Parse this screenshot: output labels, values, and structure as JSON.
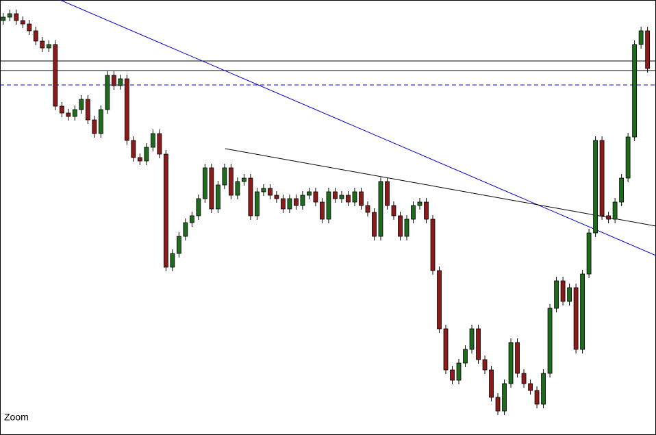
{
  "chart_data": {
    "type": "candlestick",
    "label": "Zoom",
    "up_color": "#1e6b1e",
    "down_color": "#8b1a1a",
    "wick_color": "#000000",
    "xlim": [
      -0.5,
      100.3
    ],
    "ylim": [
      0,
      635
    ],
    "open": [
      605,
      610,
      615,
      605,
      600,
      590,
      575,
      565,
      570,
      480,
      470,
      465,
      475,
      490,
      460,
      440,
      475,
      525,
      510,
      520,
      430,
      405,
      400,
      420,
      440,
      410,
      245,
      265,
      290,
      310,
      320,
      345,
      390,
      330,
      365,
      390,
      350,
      370,
      375,
      320,
      355,
      360,
      350,
      345,
      330,
      345,
      335,
      350,
      355,
      340,
      315,
      355,
      345,
      350,
      340,
      355,
      335,
      325,
      290,
      370,
      335,
      320,
      290,
      315,
      335,
      340,
      315,
      240,
      155,
      95,
      80,
      105,
      125,
      155,
      110,
      95,
      55,
      35,
      75,
      135,
      90,
      75,
      65,
      45,
      90,
      185,
      225,
      195,
      215,
      125,
      235,
      295,
      430,
      320,
      315,
      340,
      375,
      435,
      570,
      590
    ],
    "high": [
      616,
      621,
      621,
      611,
      606,
      596,
      581,
      576,
      576,
      486,
      476,
      481,
      496,
      496,
      466,
      481,
      531,
      531,
      526,
      526,
      436,
      411,
      426,
      446,
      446,
      416,
      271,
      296,
      316,
      326,
      351,
      396,
      396,
      371,
      396,
      396,
      376,
      381,
      381,
      361,
      366,
      366,
      356,
      351,
      351,
      351,
      356,
      361,
      361,
      346,
      361,
      361,
      356,
      356,
      361,
      361,
      341,
      331,
      376,
      376,
      341,
      326,
      321,
      341,
      346,
      346,
      321,
      246,
      161,
      101,
      111,
      131,
      161,
      161,
      116,
      101,
      61,
      81,
      141,
      141,
      96,
      81,
      71,
      96,
      191,
      231,
      231,
      221,
      221,
      241,
      301,
      436,
      436,
      326,
      346,
      381,
      441,
      576,
      596,
      596
    ],
    "low": [
      599,
      604,
      599,
      594,
      584,
      569,
      559,
      559,
      474,
      464,
      459,
      459,
      469,
      454,
      434,
      434,
      469,
      504,
      504,
      424,
      399,
      394,
      394,
      414,
      404,
      239,
      239,
      259,
      284,
      304,
      314,
      339,
      324,
      324,
      359,
      344,
      344,
      364,
      314,
      314,
      349,
      344,
      339,
      324,
      324,
      329,
      329,
      344,
      334,
      309,
      309,
      339,
      339,
      334,
      334,
      329,
      319,
      284,
      284,
      329,
      314,
      284,
      284,
      309,
      329,
      309,
      234,
      149,
      89,
      74,
      74,
      99,
      119,
      104,
      89,
      49,
      29,
      29,
      69,
      84,
      69,
      59,
      39,
      39,
      84,
      179,
      189,
      189,
      119,
      119,
      229,
      289,
      314,
      309,
      309,
      334,
      369,
      429,
      564,
      529
    ],
    "close": [
      610,
      615,
      605,
      600,
      590,
      575,
      565,
      570,
      480,
      470,
      465,
      475,
      490,
      460,
      440,
      475,
      525,
      510,
      520,
      430,
      405,
      400,
      420,
      440,
      410,
      245,
      265,
      290,
      310,
      320,
      345,
      390,
      330,
      365,
      390,
      350,
      370,
      375,
      320,
      355,
      360,
      350,
      345,
      330,
      345,
      335,
      350,
      355,
      340,
      315,
      355,
      345,
      350,
      340,
      355,
      335,
      325,
      290,
      370,
      335,
      320,
      290,
      315,
      335,
      340,
      315,
      240,
      155,
      95,
      80,
      105,
      125,
      155,
      110,
      95,
      55,
      35,
      75,
      135,
      90,
      75,
      65,
      45,
      90,
      185,
      225,
      195,
      215,
      125,
      235,
      295,
      430,
      320,
      315,
      340,
      375,
      435,
      570,
      590,
      535
    ],
    "hlines": [
      {
        "value": 546,
        "color": "#000000",
        "dashed": false
      },
      {
        "value": 532,
        "color": "#000000",
        "dashed": false
      },
      {
        "value": 511,
        "color": "#0000cc",
        "dashed": true
      }
    ],
    "trendlines": [
      {
        "x": [
          8.74,
          100.3
        ],
        "y": [
          635,
          262
        ],
        "color": "#0000cc"
      },
      {
        "x": [
          34.1,
          100.3
        ],
        "y": [
          418,
          305
        ],
        "color": "#000000"
      }
    ]
  }
}
